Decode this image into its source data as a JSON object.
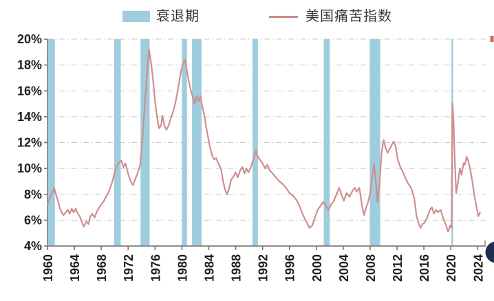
{
  "legend": {
    "recession_label": "衰退期",
    "series_label": "美国痛苦指数"
  },
  "colors": {
    "recession_band": "#9ecddd",
    "line": "#d08e8e",
    "gridline": "#c9c9c9",
    "axis": "#8c8c8c",
    "tick": "#767676",
    "tick_text": "#1f1f1f",
    "watermark_circle": "#1c2f4f",
    "edge_mark_red": "#c0504d"
  },
  "chart_data": {
    "type": "line",
    "title": "",
    "xlabel": "",
    "ylabel": "",
    "grid": "horizontal dash-dot",
    "legend_position": "top-center",
    "ylim": [
      4,
      20
    ],
    "xlim": [
      1960,
      2025.2
    ],
    "y_ticks": [
      "20%",
      "18%",
      "16%",
      "14%",
      "12%",
      "10%",
      "8%",
      "6%",
      "4%"
    ],
    "y_tick_values": [
      20,
      18,
      16,
      14,
      12,
      10,
      8,
      6,
      4
    ],
    "x_ticks": [
      "1960",
      "1964",
      "1968",
      "1972",
      "1976",
      "1980",
      "1984",
      "1988",
      "1992",
      "1996",
      "2000",
      "2004",
      "2008",
      "2012",
      "2016",
      "2020",
      "2024"
    ],
    "x_tick_values": [
      1960,
      1964,
      1968,
      1972,
      1976,
      1980,
      1984,
      1988,
      1992,
      1996,
      2000,
      2004,
      2008,
      2012,
      2016,
      2020,
      2024
    ],
    "x_label_rotation": -90,
    "recession_bands": {
      "label": "衰退期",
      "periods": [
        [
          1960.1,
          1961.1
        ],
        [
          1969.92,
          1970.9
        ],
        [
          1973.85,
          1975.2
        ],
        [
          1980.0,
          1980.75
        ],
        [
          1981.5,
          1982.92
        ],
        [
          1990.5,
          1991.3
        ],
        [
          2001.1,
          2002.0
        ],
        [
          2007.95,
          2009.5
        ],
        [
          2020.1,
          2020.35
        ]
      ]
    },
    "series": [
      {
        "name": "美国痛苦指数",
        "unit": "%",
        "points": [
          [
            1960.0,
            7.2
          ],
          [
            1960.2,
            7.5
          ],
          [
            1960.5,
            7.9
          ],
          [
            1960.8,
            8.2
          ],
          [
            1961.0,
            8.5
          ],
          [
            1961.2,
            8.1
          ],
          [
            1961.5,
            7.6
          ],
          [
            1961.8,
            7.0
          ],
          [
            1962.1,
            6.6
          ],
          [
            1962.4,
            6.4
          ],
          [
            1962.7,
            6.6
          ],
          [
            1963.0,
            6.8
          ],
          [
            1963.3,
            6.5
          ],
          [
            1963.6,
            6.9
          ],
          [
            1963.9,
            6.6
          ],
          [
            1964.2,
            6.9
          ],
          [
            1964.5,
            6.5
          ],
          [
            1964.8,
            6.3
          ],
          [
            1965.1,
            5.9
          ],
          [
            1965.4,
            5.5
          ],
          [
            1965.8,
            5.9
          ],
          [
            1966.1,
            5.7
          ],
          [
            1966.4,
            6.3
          ],
          [
            1966.7,
            6.5
          ],
          [
            1967.0,
            6.2
          ],
          [
            1967.3,
            6.6
          ],
          [
            1967.6,
            6.9
          ],
          [
            1968.0,
            7.2
          ],
          [
            1968.4,
            7.5
          ],
          [
            1968.8,
            7.9
          ],
          [
            1969.2,
            8.3
          ],
          [
            1969.6,
            8.9
          ],
          [
            1970.0,
            9.7
          ],
          [
            1970.3,
            10.2
          ],
          [
            1970.7,
            10.5
          ],
          [
            1971.0,
            10.6
          ],
          [
            1971.3,
            10.1
          ],
          [
            1971.6,
            10.4
          ],
          [
            1972.0,
            9.6
          ],
          [
            1972.3,
            9.1
          ],
          [
            1972.7,
            8.7
          ],
          [
            1973.0,
            9.1
          ],
          [
            1973.4,
            9.6
          ],
          [
            1973.8,
            10.3
          ],
          [
            1974.0,
            11.5
          ],
          [
            1974.3,
            13.6
          ],
          [
            1974.6,
            15.8
          ],
          [
            1974.9,
            17.9
          ],
          [
            1975.1,
            19.2
          ],
          [
            1975.4,
            18.2
          ],
          [
            1975.7,
            16.9
          ],
          [
            1976.0,
            15.2
          ],
          [
            1976.3,
            14.0
          ],
          [
            1976.6,
            13.1
          ],
          [
            1976.9,
            13.3
          ],
          [
            1977.1,
            14.1
          ],
          [
            1977.4,
            13.3
          ],
          [
            1977.7,
            13.0
          ],
          [
            1978.0,
            13.3
          ],
          [
            1978.3,
            13.8
          ],
          [
            1978.7,
            14.4
          ],
          [
            1979.0,
            15.0
          ],
          [
            1979.3,
            15.8
          ],
          [
            1979.6,
            16.7
          ],
          [
            1979.9,
            17.6
          ],
          [
            1980.2,
            18.1
          ],
          [
            1980.45,
            18.4
          ],
          [
            1980.7,
            17.7
          ],
          [
            1981.0,
            16.8
          ],
          [
            1981.3,
            16.1
          ],
          [
            1981.6,
            15.6
          ],
          [
            1981.9,
            15.0
          ],
          [
            1982.2,
            15.6
          ],
          [
            1982.5,
            15.2
          ],
          [
            1982.75,
            15.6
          ],
          [
            1983.0,
            14.9
          ],
          [
            1983.3,
            14.2
          ],
          [
            1983.6,
            13.2
          ],
          [
            1983.9,
            12.4
          ],
          [
            1984.2,
            11.6
          ],
          [
            1984.5,
            11.0
          ],
          [
            1984.8,
            10.7
          ],
          [
            1985.1,
            10.8
          ],
          [
            1985.4,
            10.4
          ],
          [
            1985.8,
            10.0
          ],
          [
            1986.1,
            9.1
          ],
          [
            1986.4,
            8.4
          ],
          [
            1986.7,
            8.0
          ],
          [
            1987.0,
            8.4
          ],
          [
            1987.3,
            9.1
          ],
          [
            1987.7,
            9.4
          ],
          [
            1988.0,
            9.7
          ],
          [
            1988.3,
            9.3
          ],
          [
            1988.7,
            9.9
          ],
          [
            1989.0,
            10.1
          ],
          [
            1989.3,
            9.6
          ],
          [
            1989.6,
            10.0
          ],
          [
            1989.9,
            9.7
          ],
          [
            1990.2,
            10.0
          ],
          [
            1990.5,
            10.5
          ],
          [
            1990.8,
            11.0
          ],
          [
            1991.0,
            11.4
          ],
          [
            1991.3,
            10.9
          ],
          [
            1991.7,
            10.6
          ],
          [
            1992.0,
            10.4
          ],
          [
            1992.4,
            10.0
          ],
          [
            1992.7,
            10.3
          ],
          [
            1993.0,
            9.9
          ],
          [
            1993.5,
            9.6
          ],
          [
            1994.0,
            9.3
          ],
          [
            1994.5,
            9.0
          ],
          [
            1995.0,
            8.8
          ],
          [
            1995.5,
            8.5
          ],
          [
            1996.0,
            8.1
          ],
          [
            1996.5,
            7.9
          ],
          [
            1997.0,
            7.6
          ],
          [
            1997.5,
            7.1
          ],
          [
            1998.0,
            6.4
          ],
          [
            1998.5,
            5.9
          ],
          [
            1999.0,
            5.4
          ],
          [
            1999.4,
            5.6
          ],
          [
            1999.8,
            6.2
          ],
          [
            2000.2,
            6.8
          ],
          [
            2000.6,
            7.1
          ],
          [
            2001.0,
            7.4
          ],
          [
            2001.4,
            7.1
          ],
          [
            2001.8,
            6.8
          ],
          [
            2002.2,
            7.2
          ],
          [
            2002.6,
            7.5
          ],
          [
            2003.0,
            8.0
          ],
          [
            2003.4,
            8.5
          ],
          [
            2003.8,
            7.9
          ],
          [
            2004.1,
            7.5
          ],
          [
            2004.5,
            8.1
          ],
          [
            2004.9,
            7.8
          ],
          [
            2005.3,
            8.2
          ],
          [
            2005.7,
            8.5
          ],
          [
            2006.0,
            8.2
          ],
          [
            2006.4,
            8.5
          ],
          [
            2006.8,
            7.1
          ],
          [
            2007.1,
            6.4
          ],
          [
            2007.4,
            7.0
          ],
          [
            2007.7,
            7.4
          ],
          [
            2008.0,
            8.1
          ],
          [
            2008.3,
            9.4
          ],
          [
            2008.6,
            10.3
          ],
          [
            2008.85,
            9.0
          ],
          [
            2009.1,
            7.4
          ],
          [
            2009.4,
            8.8
          ],
          [
            2009.7,
            11.2
          ],
          [
            2010.0,
            12.2
          ],
          [
            2010.3,
            11.6
          ],
          [
            2010.6,
            11.2
          ],
          [
            2010.9,
            11.5
          ],
          [
            2011.2,
            11.8
          ],
          [
            2011.5,
            12.1
          ],
          [
            2011.8,
            11.7
          ],
          [
            2012.1,
            10.7
          ],
          [
            2012.5,
            10.1
          ],
          [
            2012.9,
            9.7
          ],
          [
            2013.3,
            9.2
          ],
          [
            2013.7,
            8.8
          ],
          [
            2014.0,
            8.6
          ],
          [
            2014.3,
            8.2
          ],
          [
            2014.6,
            7.6
          ],
          [
            2014.9,
            6.3
          ],
          [
            2015.2,
            5.8
          ],
          [
            2015.5,
            5.4
          ],
          [
            2015.8,
            5.7
          ],
          [
            2016.1,
            5.8
          ],
          [
            2016.5,
            6.2
          ],
          [
            2016.9,
            6.8
          ],
          [
            2017.2,
            7.0
          ],
          [
            2017.5,
            6.5
          ],
          [
            2017.8,
            6.8
          ],
          [
            2018.1,
            6.6
          ],
          [
            2018.5,
            6.8
          ],
          [
            2018.9,
            6.1
          ],
          [
            2019.3,
            5.6
          ],
          [
            2019.6,
            5.1
          ],
          [
            2019.9,
            5.6
          ],
          [
            2020.1,
            5.4
          ],
          [
            2020.25,
            15.1
          ],
          [
            2020.4,
            13.8
          ],
          [
            2020.6,
            10.5
          ],
          [
            2020.8,
            8.1
          ],
          [
            2021.1,
            9.0
          ],
          [
            2021.35,
            10.0
          ],
          [
            2021.6,
            9.5
          ],
          [
            2021.9,
            10.4
          ],
          [
            2022.1,
            10.3
          ],
          [
            2022.35,
            10.9
          ],
          [
            2022.6,
            10.6
          ],
          [
            2022.9,
            9.9
          ],
          [
            2023.2,
            9.0
          ],
          [
            2023.5,
            7.9
          ],
          [
            2023.8,
            7.1
          ],
          [
            2024.1,
            6.3
          ],
          [
            2024.35,
            6.6
          ]
        ]
      }
    ]
  }
}
